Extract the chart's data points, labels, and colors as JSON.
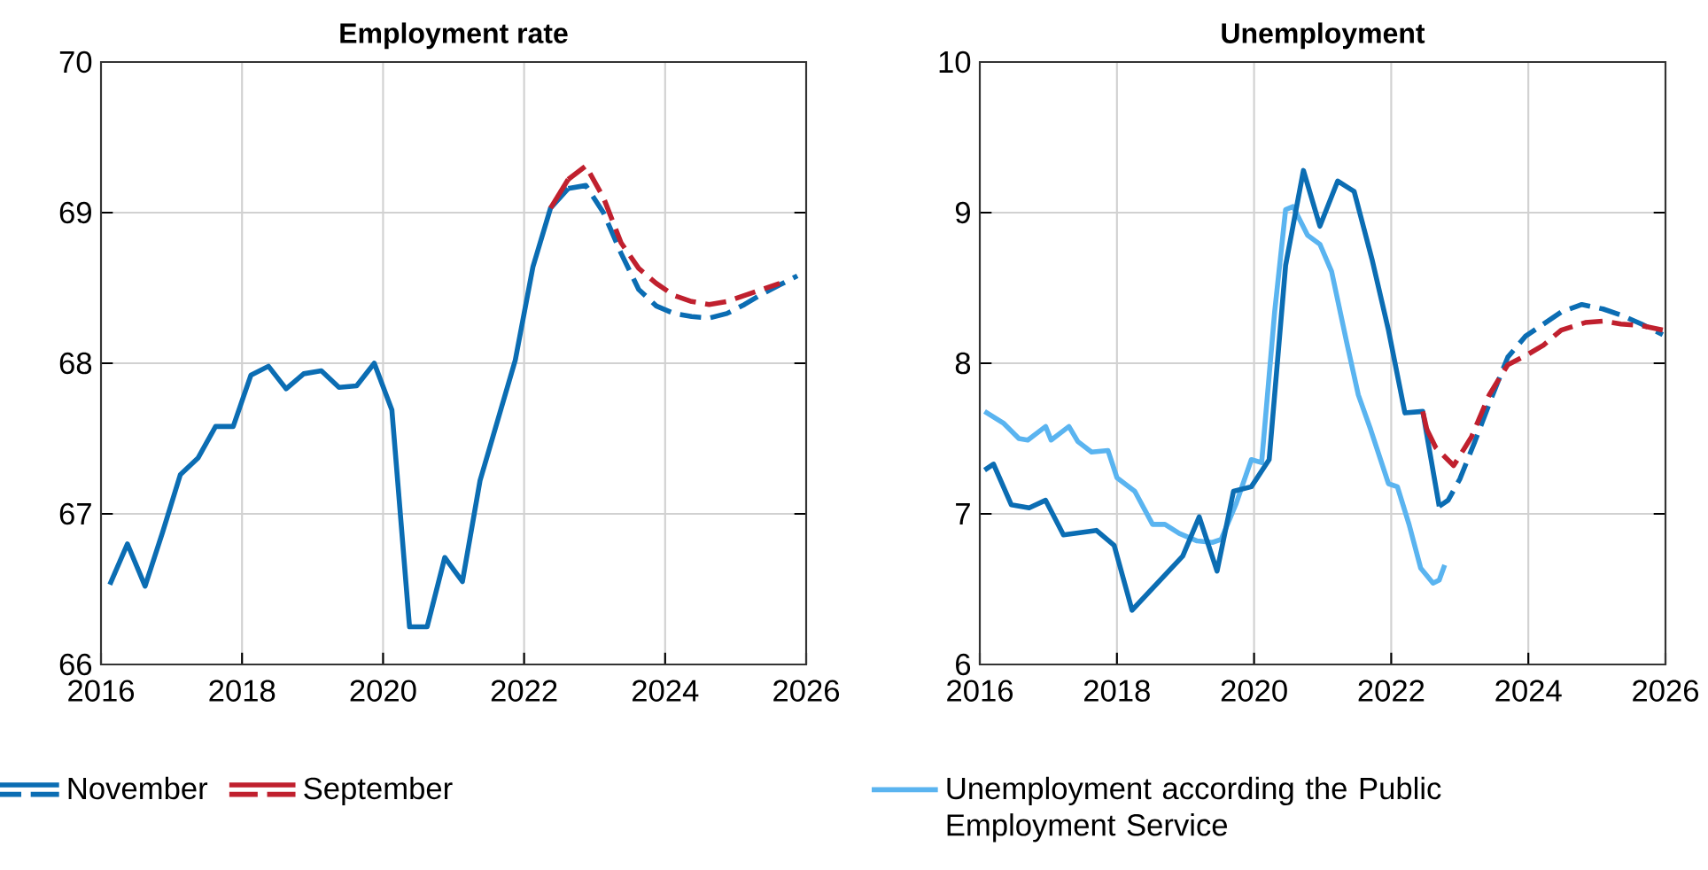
{
  "chart_data": [
    {
      "type": "line",
      "title": "Employment rate",
      "xlim": [
        2016,
        2026
      ],
      "ylim": [
        66,
        70
      ],
      "xticks": [
        2016,
        2018,
        2020,
        2022,
        2024,
        2026
      ],
      "yticks": [
        66,
        67,
        68,
        69,
        70
      ],
      "grid": true,
      "legend": "bottom",
      "series": [
        {
          "name": "November",
          "color": "#0b6db3",
          "line_style": "solid",
          "x": [
            2016.125,
            2016.375,
            2016.625,
            2016.875,
            2017.125,
            2017.375,
            2017.625,
            2017.875,
            2018.125,
            2018.375,
            2018.625,
            2018.875,
            2019.125,
            2019.375,
            2019.625,
            2019.875,
            2020.125,
            2020.375,
            2020.625,
            2020.875,
            2021.125,
            2021.375,
            2021.625,
            2021.875,
            2022.125,
            2022.375,
            2022.625
          ],
          "values": [
            66.53,
            66.8,
            66.52,
            66.88,
            67.26,
            67.37,
            67.58,
            67.58,
            67.92,
            67.98,
            67.83,
            67.93,
            67.95,
            67.84,
            67.85,
            68.0,
            67.69,
            66.25,
            66.25,
            66.71,
            66.55,
            67.22,
            67.62,
            68.02,
            68.64,
            69.03,
            69.16
          ]
        },
        {
          "color": "#0b6db3",
          "line_style": "dashed",
          "x": [
            2022.625,
            2022.875,
            2023.125,
            2023.375,
            2023.625,
            2023.875,
            2024.125,
            2024.375,
            2024.625,
            2024.875,
            2025.125,
            2025.375,
            2025.625,
            2025.875
          ],
          "values": [
            69.16,
            69.18,
            69.0,
            68.73,
            68.49,
            68.38,
            68.33,
            68.31,
            68.3,
            68.33,
            68.39,
            68.46,
            68.52,
            68.58
          ]
        },
        {
          "name": "September",
          "color": "#c0202e",
          "line_style": "solid",
          "x": [
            2022.375,
            2022.625
          ],
          "values": [
            69.03,
            69.22
          ]
        },
        {
          "color": "#c0202e",
          "line_style": "dashed",
          "x": [
            2022.625,
            2022.875,
            2023.125,
            2023.375,
            2023.625,
            2023.875,
            2024.125,
            2024.375,
            2024.625,
            2024.875,
            2025.125,
            2025.375,
            2025.625
          ],
          "values": [
            69.22,
            69.31,
            69.1,
            68.8,
            68.63,
            68.53,
            68.45,
            68.41,
            68.39,
            68.41,
            68.45,
            68.49,
            68.53
          ]
        }
      ]
    },
    {
      "type": "line",
      "title": "Unemployment",
      "xlim": [
        2016,
        2026
      ],
      "ylim": [
        6,
        10
      ],
      "xticks": [
        2016,
        2018,
        2020,
        2022,
        2024,
        2026
      ],
      "yticks": [
        6,
        7,
        8,
        9,
        10
      ],
      "grid": true,
      "legend": "bottom",
      "series": [
        {
          "name": "Unemployment according the Public Employment Service",
          "color": "#5ab4f0",
          "line_style": "solid",
          "x": [
            2016.07,
            2016.35,
            2016.57,
            2016.7,
            2016.96,
            2017.04,
            2017.3,
            2017.43,
            2017.63,
            2017.87,
            2018.0,
            2018.26,
            2018.52,
            2018.7,
            2018.91,
            2019.17,
            2019.39,
            2019.52,
            2019.74,
            2019.96,
            2020.11,
            2020.3,
            2020.46,
            2020.57,
            2020.78,
            2020.96,
            2021.13,
            2021.35,
            2021.52,
            2021.7,
            2021.96,
            2022.09,
            2022.26,
            2022.43,
            2022.61,
            2022.7,
            2022.78
          ],
          "values": [
            7.68,
            7.6,
            7.5,
            7.49,
            7.58,
            7.49,
            7.58,
            7.48,
            7.41,
            7.42,
            7.24,
            7.15,
            6.93,
            6.93,
            6.87,
            6.82,
            6.81,
            6.83,
            7.07,
            7.36,
            7.34,
            8.34,
            9.02,
            9.04,
            8.85,
            8.79,
            8.61,
            8.14,
            7.79,
            7.56,
            7.2,
            7.18,
            6.93,
            6.64,
            6.54,
            6.56,
            6.66
          ]
        },
        {
          "color": "#0b6db3",
          "line_style": "solid",
          "x": [
            2016.07,
            2016.2,
            2016.46,
            2016.72,
            2016.96,
            2017.22,
            2017.7,
            2017.96,
            2018.22,
            2018.96,
            2019.2,
            2019.46,
            2019.7,
            2019.96,
            2020.22,
            2020.46,
            2020.72,
            2020.96,
            2021.22,
            2021.46,
            2021.72,
            2021.96,
            2022.2,
            2022.46,
            2022.7
          ],
          "values": [
            7.29,
            7.33,
            7.06,
            7.04,
            7.09,
            6.86,
            6.89,
            6.79,
            6.36,
            6.72,
            6.98,
            6.62,
            7.15,
            7.18,
            7.36,
            8.65,
            9.28,
            8.91,
            9.21,
            9.14,
            8.69,
            8.22,
            7.67,
            7.68,
            7.05
          ]
        },
        {
          "color": "#0b6db3",
          "line_style": "dashed",
          "x": [
            2022.7,
            2022.83,
            2023.0,
            2023.22,
            2023.48,
            2023.7,
            2023.96,
            2024.22,
            2024.48,
            2024.78,
            2025.09,
            2025.35,
            2025.65,
            2025.96
          ],
          "values": [
            7.05,
            7.09,
            7.23,
            7.48,
            7.79,
            8.04,
            8.18,
            8.26,
            8.34,
            8.39,
            8.36,
            8.32,
            8.26,
            8.19
          ]
        },
        {
          "color": "#c0202e",
          "line_style": "solid",
          "x": [
            2022.46,
            2022.52
          ],
          "values": [
            7.68,
            7.56
          ]
        },
        {
          "color": "#c0202e",
          "line_style": "dashed",
          "x": [
            2022.52,
            2022.65,
            2022.91,
            2023.17,
            2023.43,
            2023.7,
            2023.96,
            2024.22,
            2024.48,
            2024.83,
            2025.09,
            2025.35,
            2025.65,
            2025.96
          ],
          "values": [
            7.56,
            7.44,
            7.32,
            7.51,
            7.79,
            7.99,
            8.05,
            8.12,
            8.22,
            8.27,
            8.28,
            8.26,
            8.25,
            8.22
          ]
        }
      ]
    }
  ]
}
